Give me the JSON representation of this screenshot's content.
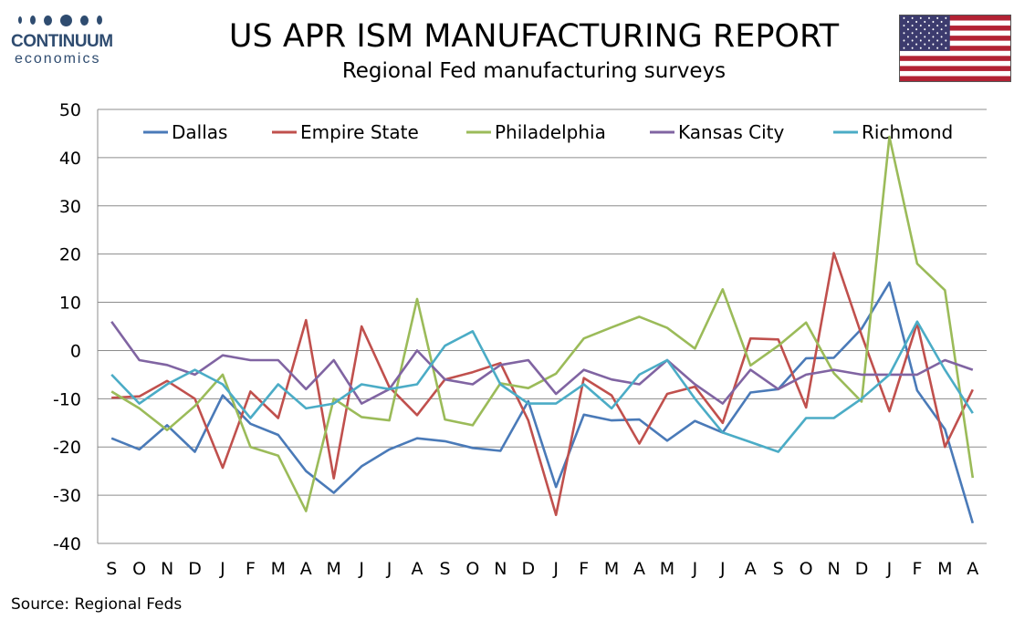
{
  "logo": {
    "brand": "CONTINUUM",
    "sub": "economics"
  },
  "header": {
    "title": "US APR ISM MANUFACTURING REPORT",
    "subtitle": "Regional Fed manufacturing surveys"
  },
  "source": "Source: Regional Feds",
  "flag": {
    "icon": "us-flag-icon",
    "colors": {
      "red": "#b22234",
      "white": "#ffffff",
      "blue": "#3c3b6e"
    }
  },
  "chart_data": {
    "type": "line",
    "categories": [
      "S",
      "O",
      "N",
      "D",
      "J",
      "F",
      "M",
      "A",
      "M",
      "J",
      "J",
      "A",
      "S",
      "O",
      "N",
      "D",
      "J",
      "F",
      "M",
      "A",
      "M",
      "J",
      "J",
      "A",
      "S",
      "O",
      "N",
      "D",
      "J",
      "F",
      "M",
      "A"
    ],
    "ylim": [
      -40,
      50
    ],
    "yticks": [
      50,
      40,
      30,
      20,
      10,
      0,
      -10,
      -20,
      -30,
      -40
    ],
    "grid": true,
    "legend": "top",
    "series": [
      {
        "name": "Dallas",
        "color": "#4a7ab8",
        "values": [
          -18.2,
          -20.5,
          -15.5,
          -21,
          -9.3,
          -15.2,
          -17.5,
          -25,
          -29.5,
          -24,
          -20.5,
          -18.2,
          -18.8,
          -20.2,
          -20.8,
          -10.5,
          -28.3,
          -13.3,
          -14.5,
          -14.3,
          -18.7,
          -14.6,
          -17,
          -8.7,
          -8,
          -1.6,
          -1.5,
          4.5,
          14.1,
          -8.3,
          -16.3,
          -35.8
        ]
      },
      {
        "name": "Empire State",
        "color": "#c0504d",
        "values": [
          -9.8,
          -9.5,
          -6.3,
          -10,
          -24.3,
          -8.5,
          -14,
          6.3,
          -26.5,
          5,
          -7.6,
          -13.4,
          -6,
          -4.5,
          -2.6,
          -14.5,
          -34.1,
          -5.7,
          -9.3,
          -19.3,
          -9,
          -7.5,
          -15,
          2.5,
          2.3,
          -11.8,
          20.2,
          3.2,
          -12.6,
          5.7,
          -20,
          -8.1
        ]
      },
      {
        "name": "Philadelphia",
        "color": "#9bbb59",
        "values": [
          -8.5,
          -12,
          -16.5,
          -11.5,
          -5,
          -20,
          -21.8,
          -33.3,
          -10,
          -13.8,
          -14.5,
          10.7,
          -14.3,
          -15.5,
          -6.8,
          -7.8,
          -4.8,
          2.5,
          4.8,
          7,
          4.7,
          0.4,
          12.7,
          -3.1,
          1,
          5.8,
          -4.7,
          -10.6,
          44.3,
          18,
          12.5,
          -26.4
        ]
      },
      {
        "name": "Kansas City",
        "color": "#8064a2",
        "values": [
          6,
          -2,
          -3,
          -5,
          -1,
          -2,
          -2,
          -8,
          -2,
          -11,
          -8,
          0,
          -6,
          -7,
          -3,
          -2,
          -9,
          -4,
          -6,
          -7,
          -2,
          -7,
          -11,
          -4,
          -8,
          -5,
          -4,
          -5,
          -5,
          -5,
          -2,
          -4
        ]
      },
      {
        "name": "Richmond",
        "color": "#4bacc6",
        "values": [
          -5,
          -11,
          -7,
          -4,
          -7,
          -14,
          -7,
          -12,
          -11,
          -7,
          -8,
          -7,
          1,
          4,
          -7,
          -11,
          -11,
          -7,
          -12,
          -5,
          -2,
          -10,
          -17,
          -19,
          -21,
          -14,
          -14,
          -10,
          -5,
          6,
          -4,
          -13
        ]
      }
    ]
  }
}
